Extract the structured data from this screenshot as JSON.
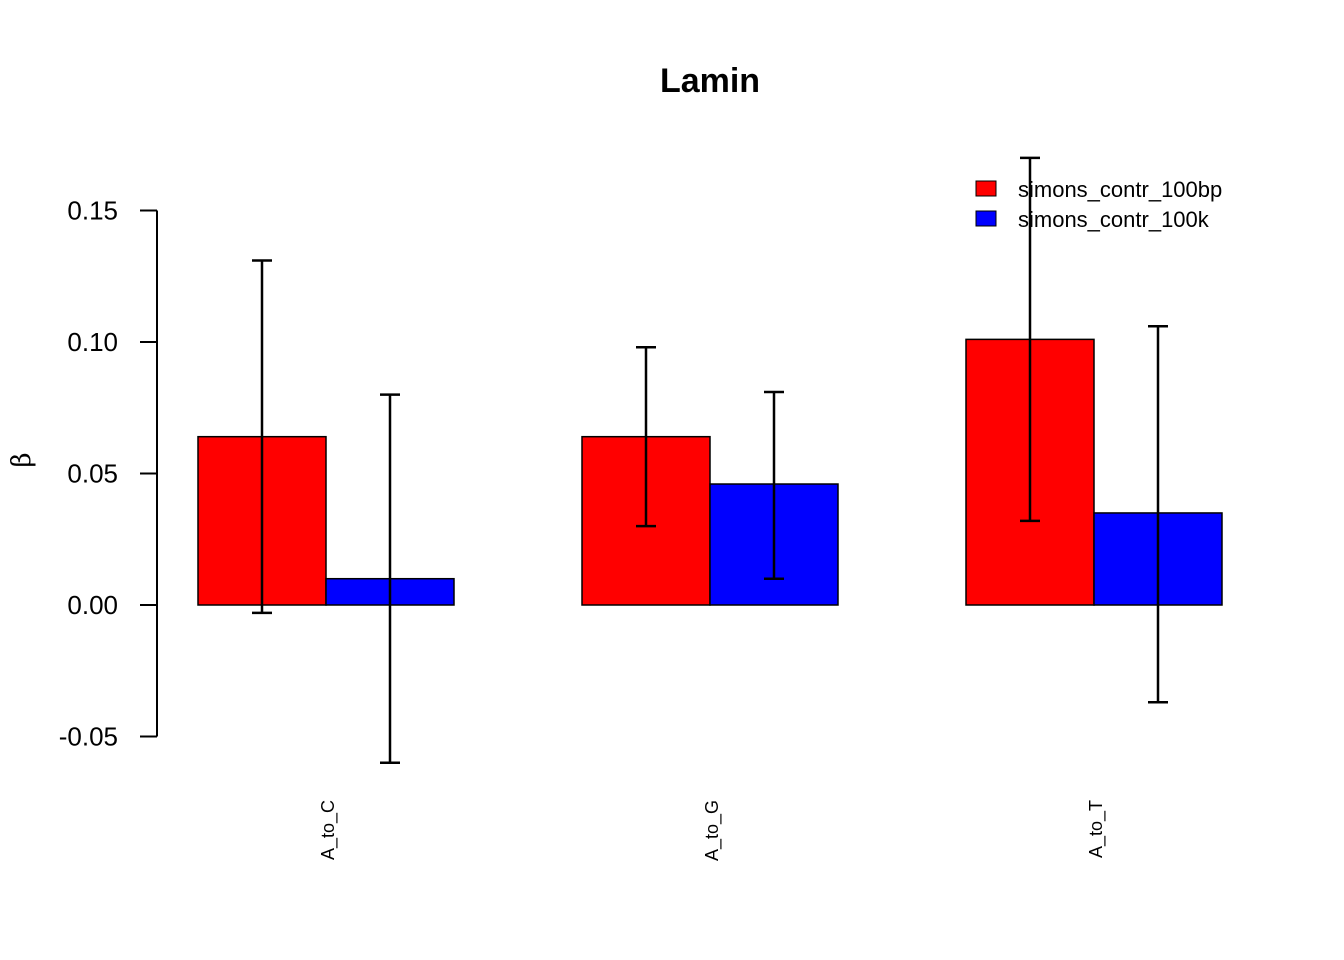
{
  "chart_data": {
    "type": "bar",
    "title": "Lamin",
    "xlabel": "",
    "ylabel": "β",
    "ylim": [
      -0.06,
      0.17
    ],
    "yticks": [
      -0.05,
      0.0,
      0.05,
      0.1,
      0.15
    ],
    "ytick_labels": [
      "-0.05",
      "0.00",
      "0.05",
      "0.10",
      "0.15"
    ],
    "categories": [
      "A_to_C",
      "A_to_G",
      "A_to_T"
    ],
    "series": [
      {
        "name": "simons_contr_100bp",
        "color": "#ff0000",
        "values": [
          0.064,
          0.064,
          0.101
        ],
        "err_low": [
          -0.003,
          0.03,
          0.032
        ],
        "err_high": [
          0.131,
          0.098,
          0.17
        ]
      },
      {
        "name": "simons_contr_100k",
        "color": "#0000ff",
        "values": [
          0.01,
          0.046,
          0.035
        ],
        "err_low": [
          -0.06,
          0.01,
          -0.037
        ],
        "err_high": [
          0.08,
          0.081,
          0.106
        ]
      }
    ],
    "legend_position": "top-right",
    "grid": false
  }
}
